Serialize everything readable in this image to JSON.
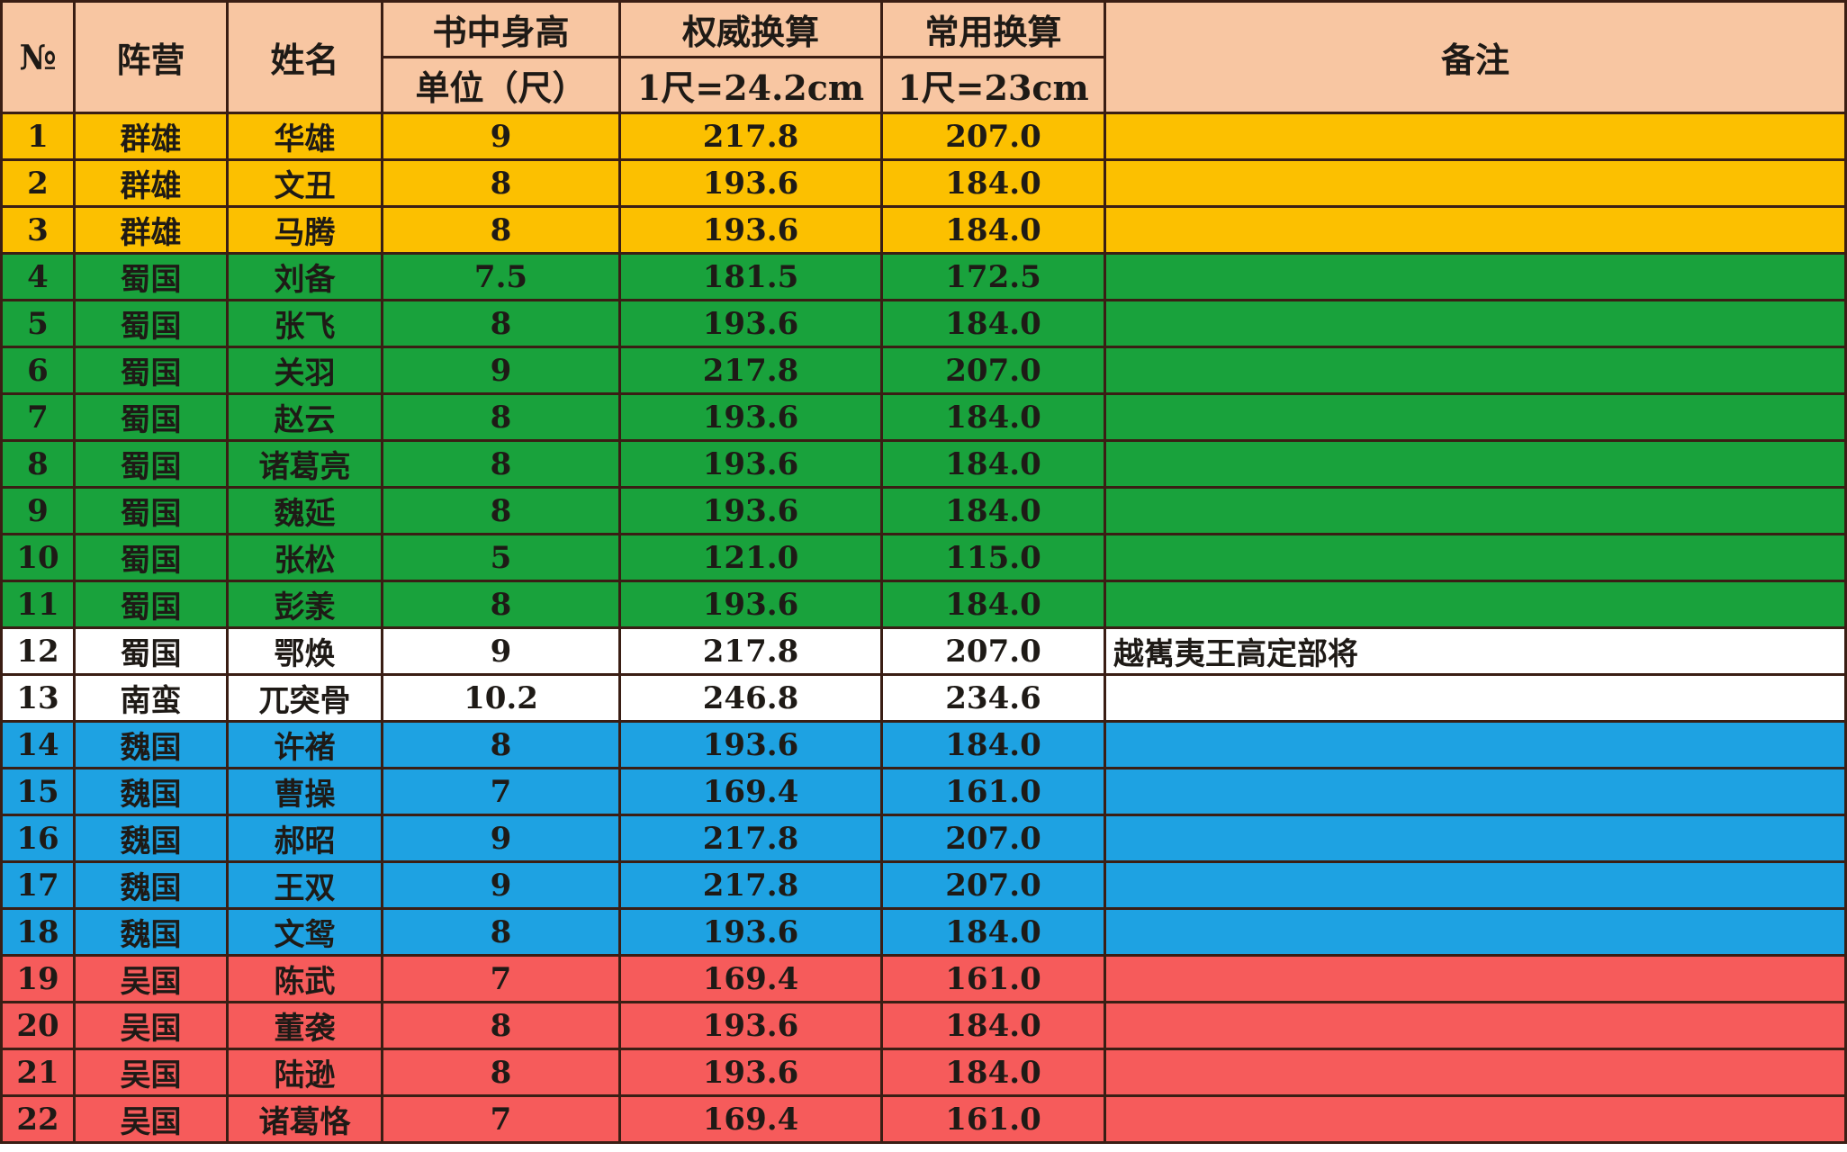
{
  "header": {
    "no": "№",
    "camp": "阵营",
    "name": "姓名",
    "height_book": "书中身高",
    "height_unit": "单位（尺）",
    "auth": "权威换算",
    "auth_unit": "1尺=24.2cm",
    "common": "常用换算",
    "common_unit": "1尺=23cm",
    "note": "备注"
  },
  "colors": {
    "header": "#f8c6a2",
    "群雄": "#fcc000",
    "蜀国": "#19a23c",
    "white": "#ffffff",
    "魏国": "#1ea2e2",
    "吴国": "#f65b5b"
  },
  "rows": [
    {
      "no": "1",
      "camp": "群雄",
      "name": "华雄",
      "chi": "9",
      "auth": "217.8",
      "common": "207.0",
      "note": "",
      "color": "yellow"
    },
    {
      "no": "2",
      "camp": "群雄",
      "name": "文丑",
      "chi": "8",
      "auth": "193.6",
      "common": "184.0",
      "note": "",
      "color": "yellow"
    },
    {
      "no": "3",
      "camp": "群雄",
      "name": "马腾",
      "chi": "8",
      "auth": "193.6",
      "common": "184.0",
      "note": "",
      "color": "yellow"
    },
    {
      "no": "4",
      "camp": "蜀国",
      "name": "刘备",
      "chi": "7.5",
      "auth": "181.5",
      "common": "172.5",
      "note": "",
      "color": "green"
    },
    {
      "no": "5",
      "camp": "蜀国",
      "name": "张飞",
      "chi": "8",
      "auth": "193.6",
      "common": "184.0",
      "note": "",
      "color": "green"
    },
    {
      "no": "6",
      "camp": "蜀国",
      "name": "关羽",
      "chi": "9",
      "auth": "217.8",
      "common": "207.0",
      "note": "",
      "color": "green"
    },
    {
      "no": "7",
      "camp": "蜀国",
      "name": "赵云",
      "chi": "8",
      "auth": "193.6",
      "common": "184.0",
      "note": "",
      "color": "green"
    },
    {
      "no": "8",
      "camp": "蜀国",
      "name": "诸葛亮",
      "chi": "8",
      "auth": "193.6",
      "common": "184.0",
      "note": "",
      "color": "green"
    },
    {
      "no": "9",
      "camp": "蜀国",
      "name": "魏延",
      "chi": "8",
      "auth": "193.6",
      "common": "184.0",
      "note": "",
      "color": "green"
    },
    {
      "no": "10",
      "camp": "蜀国",
      "name": "张松",
      "chi": "5",
      "auth": "121.0",
      "common": "115.0",
      "note": "",
      "color": "green"
    },
    {
      "no": "11",
      "camp": "蜀国",
      "name": "彭羕",
      "chi": "8",
      "auth": "193.6",
      "common": "184.0",
      "note": "",
      "color": "green"
    },
    {
      "no": "12",
      "camp": "蜀国",
      "name": "鄂焕",
      "chi": "9",
      "auth": "217.8",
      "common": "207.0",
      "note": "越嶲夷王高定部将",
      "color": "white"
    },
    {
      "no": "13",
      "camp": "南蛮",
      "name": "兀突骨",
      "chi": "10.2",
      "auth": "246.8",
      "common": "234.6",
      "note": "",
      "color": "white"
    },
    {
      "no": "14",
      "camp": "魏国",
      "name": "许褚",
      "chi": "8",
      "auth": "193.6",
      "common": "184.0",
      "note": "",
      "color": "blue"
    },
    {
      "no": "15",
      "camp": "魏国",
      "name": "曹操",
      "chi": "7",
      "auth": "169.4",
      "common": "161.0",
      "note": "",
      "color": "blue"
    },
    {
      "no": "16",
      "camp": "魏国",
      "name": "郝昭",
      "chi": "9",
      "auth": "217.8",
      "common": "207.0",
      "note": "",
      "color": "blue"
    },
    {
      "no": "17",
      "camp": "魏国",
      "name": "王双",
      "chi": "9",
      "auth": "217.8",
      "common": "207.0",
      "note": "",
      "color": "blue"
    },
    {
      "no": "18",
      "camp": "魏国",
      "name": "文鸳",
      "chi": "8",
      "auth": "193.6",
      "common": "184.0",
      "note": "",
      "color": "blue"
    },
    {
      "no": "19",
      "camp": "吴国",
      "name": "陈武",
      "chi": "7",
      "auth": "169.4",
      "common": "161.0",
      "note": "",
      "color": "red"
    },
    {
      "no": "20",
      "camp": "吴国",
      "name": "董袭",
      "chi": "8",
      "auth": "193.6",
      "common": "184.0",
      "note": "",
      "color": "red"
    },
    {
      "no": "21",
      "camp": "吴国",
      "name": "陆逊",
      "chi": "8",
      "auth": "193.6",
      "common": "184.0",
      "note": "",
      "color": "red"
    },
    {
      "no": "22",
      "camp": "吴国",
      "name": "诸葛恪",
      "chi": "7",
      "auth": "169.4",
      "common": "161.0",
      "note": "",
      "color": "red"
    }
  ]
}
